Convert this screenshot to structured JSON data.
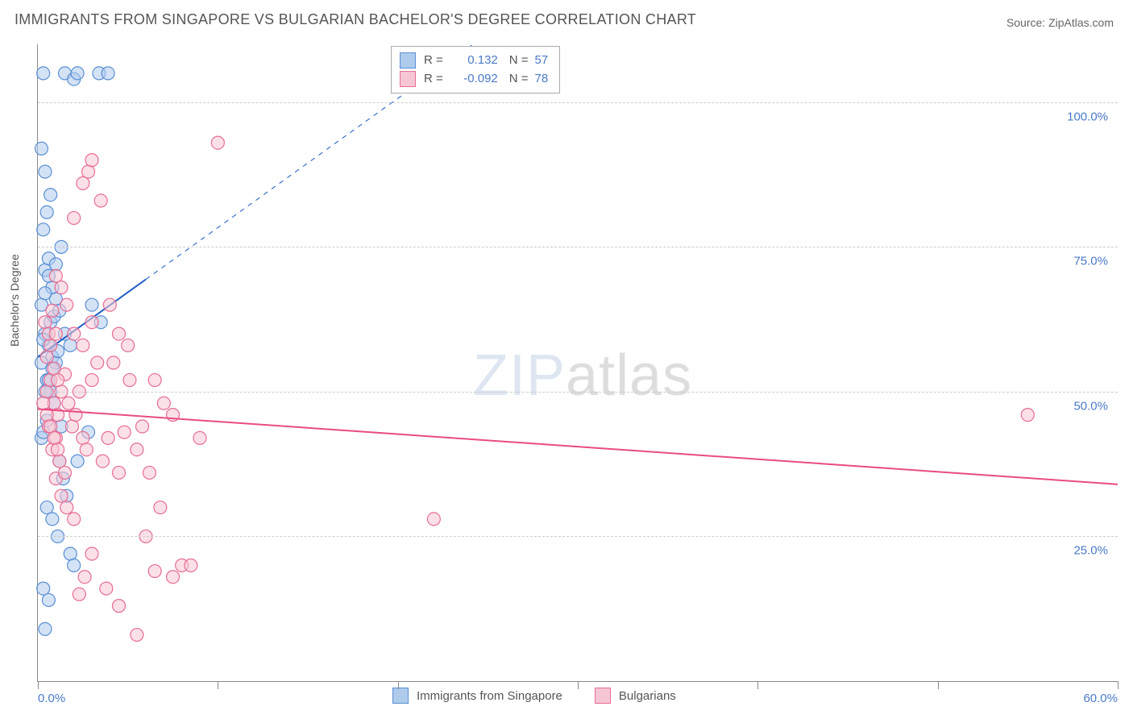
{
  "title": "IMMIGRANTS FROM SINGAPORE VS BULGARIAN BACHELOR'S DEGREE CORRELATION CHART",
  "source_label": "Source: ",
  "source_name": "ZipAtlas.com",
  "y_axis_label": "Bachelor's Degree",
  "watermark_bold": "ZIP",
  "watermark_thin": "atlas",
  "chart": {
    "type": "scatter",
    "background_color": "#ffffff",
    "grid_color": "#cccccc",
    "axis_color": "#888888",
    "tick_label_color": "#4a7ac7",
    "xlim": [
      0,
      60
    ],
    "ylim": [
      0,
      110
    ],
    "y_ticks": [
      {
        "v": 25,
        "label": "25.0%"
      },
      {
        "v": 50,
        "label": "50.0%"
      },
      {
        "v": 75,
        "label": "75.0%"
      },
      {
        "v": 100,
        "label": "100.0%"
      }
    ],
    "x_ticks": [
      0,
      10,
      20,
      30,
      40,
      50,
      60
    ],
    "x_tick_labels": [
      {
        "v": 0,
        "label": "0.0%"
      },
      {
        "v": 60,
        "label": "60.0%"
      }
    ],
    "marker_radius": 8,
    "marker_opacity": 0.55,
    "series": [
      {
        "name": "Immigrants from Singapore",
        "fill": "#aecbec",
        "stroke": "#5a8fd4",
        "R": "0.132",
        "N": "57",
        "trend": {
          "color": "#1f5fc4",
          "solid_end_x": 6,
          "y0": 56,
          "y_at_60": 190,
          "width": 2
        },
        "points": [
          [
            0.2,
            42
          ],
          [
            0.3,
            43
          ],
          [
            0.5,
            45
          ],
          [
            0.4,
            60
          ],
          [
            0.6,
            58
          ],
          [
            0.7,
            62
          ],
          [
            0.8,
            56
          ],
          [
            0.9,
            63
          ],
          [
            1.0,
            55
          ],
          [
            1.1,
            57
          ],
          [
            1.2,
            38
          ],
          [
            1.3,
            44
          ],
          [
            0.4,
            71
          ],
          [
            0.6,
            73
          ],
          [
            0.8,
            68
          ],
          [
            1.0,
            66
          ],
          [
            1.2,
            64
          ],
          [
            1.5,
            60
          ],
          [
            1.8,
            58
          ],
          [
            0.3,
            78
          ],
          [
            0.5,
            81
          ],
          [
            0.7,
            84
          ],
          [
            0.2,
            92
          ],
          [
            0.4,
            88
          ],
          [
            1.5,
            105
          ],
          [
            2.0,
            104
          ],
          [
            2.2,
            105
          ],
          [
            3.4,
            105
          ],
          [
            3.9,
            105
          ],
          [
            0.3,
            105
          ],
          [
            0.5,
            52
          ],
          [
            0.7,
            50
          ],
          [
            0.9,
            48
          ],
          [
            1.4,
            35
          ],
          [
            1.6,
            32
          ],
          [
            1.8,
            22
          ],
          [
            2.0,
            20
          ],
          [
            0.3,
            16
          ],
          [
            0.4,
            9
          ],
          [
            0.6,
            14
          ],
          [
            2.2,
            38
          ],
          [
            2.8,
            43
          ],
          [
            0.2,
            65
          ],
          [
            0.4,
            67
          ],
          [
            0.6,
            70
          ],
          [
            0.2,
            55
          ],
          [
            0.3,
            59
          ],
          [
            1.0,
            72
          ],
          [
            1.3,
            75
          ],
          [
            0.5,
            30
          ],
          [
            0.8,
            28
          ],
          [
            1.1,
            25
          ],
          [
            0.4,
            50
          ],
          [
            0.6,
            52
          ],
          [
            0.8,
            54
          ],
          [
            3.0,
            65
          ],
          [
            3.5,
            62
          ]
        ]
      },
      {
        "name": "Bulgarians",
        "fill": "#f7c6d4",
        "stroke": "#e66d94",
        "R": "-0.092",
        "N": "78",
        "trend": {
          "color": "#e94b84",
          "solid_end_x": 60,
          "y0": 47,
          "y_at_60": 34,
          "width": 2
        },
        "points": [
          [
            0.5,
            50
          ],
          [
            0.7,
            52
          ],
          [
            0.9,
            48
          ],
          [
            1.1,
            46
          ],
          [
            1.3,
            50
          ],
          [
            1.5,
            53
          ],
          [
            1.7,
            48
          ],
          [
            1.9,
            44
          ],
          [
            2.1,
            46
          ],
          [
            2.3,
            50
          ],
          [
            2.5,
            42
          ],
          [
            2.7,
            40
          ],
          [
            3.0,
            52
          ],
          [
            3.3,
            55
          ],
          [
            3.6,
            38
          ],
          [
            3.9,
            42
          ],
          [
            4.2,
            55
          ],
          [
            4.5,
            36
          ],
          [
            4.8,
            43
          ],
          [
            5.1,
            52
          ],
          [
            5.5,
            40
          ],
          [
            5.8,
            44
          ],
          [
            6.0,
            25
          ],
          [
            6.2,
            36
          ],
          [
            6.5,
            19
          ],
          [
            6.8,
            30
          ],
          [
            7.0,
            48
          ],
          [
            7.5,
            18
          ],
          [
            8.0,
            20
          ],
          [
            8.5,
            20
          ],
          [
            9.0,
            42
          ],
          [
            2.0,
            60
          ],
          [
            2.5,
            58
          ],
          [
            3.0,
            62
          ],
          [
            1.0,
            70
          ],
          [
            1.3,
            68
          ],
          [
            1.6,
            65
          ],
          [
            2.0,
            80
          ],
          [
            2.5,
            86
          ],
          [
            2.8,
            88
          ],
          [
            3.0,
            90
          ],
          [
            3.5,
            83
          ],
          [
            10.0,
            93
          ],
          [
            4.0,
            65
          ],
          [
            4.5,
            60
          ],
          [
            5.0,
            58
          ],
          [
            1.0,
            35
          ],
          [
            1.3,
            32
          ],
          [
            1.6,
            30
          ],
          [
            2.0,
            28
          ],
          [
            2.3,
            15
          ],
          [
            2.6,
            18
          ],
          [
            3.0,
            22
          ],
          [
            3.8,
            16
          ],
          [
            4.5,
            13
          ],
          [
            5.5,
            8
          ],
          [
            22.0,
            28
          ],
          [
            55.0,
            46
          ],
          [
            0.6,
            44
          ],
          [
            0.8,
            40
          ],
          [
            1.0,
            42
          ],
          [
            1.2,
            38
          ],
          [
            1.5,
            36
          ],
          [
            0.5,
            56
          ],
          [
            0.7,
            58
          ],
          [
            0.9,
            54
          ],
          [
            1.1,
            52
          ],
          [
            0.4,
            62
          ],
          [
            0.6,
            60
          ],
          [
            0.8,
            64
          ],
          [
            1.0,
            60
          ],
          [
            6.5,
            52
          ],
          [
            7.5,
            46
          ],
          [
            0.3,
            48
          ],
          [
            0.5,
            46
          ],
          [
            0.7,
            44
          ],
          [
            0.9,
            42
          ],
          [
            1.1,
            40
          ]
        ]
      }
    ]
  },
  "legend_bottom": [
    {
      "swatch_fill": "#aecbec",
      "swatch_stroke": "#5a8fd4",
      "label": "Immigrants from Singapore"
    },
    {
      "swatch_fill": "#f7c6d4",
      "swatch_stroke": "#e66d94",
      "label": "Bulgarians"
    }
  ],
  "legend_stat_R": "R =",
  "legend_stat_N": "N ="
}
